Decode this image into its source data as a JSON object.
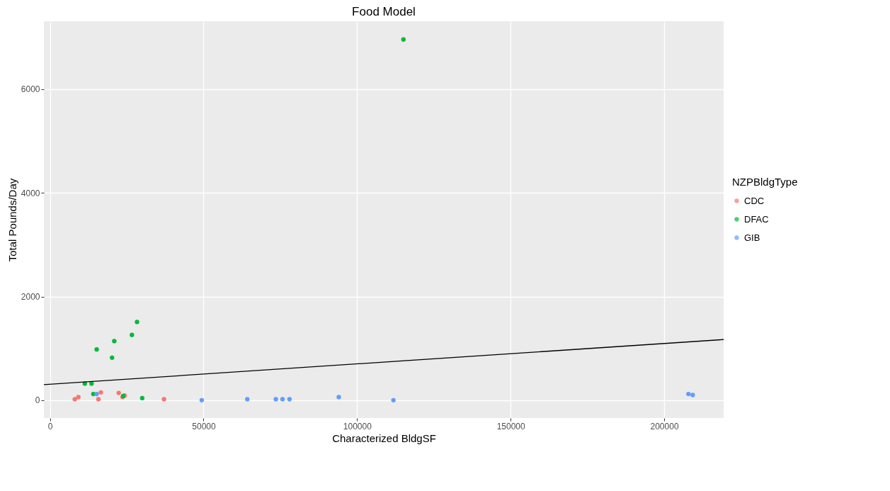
{
  "chart_data": {
    "type": "scatter",
    "title": "Food Model",
    "xlabel": "Characterized BldgSF",
    "ylabel": "Total Pounds/Day",
    "legend_title": "NZPBldgType",
    "xlim": [
      -1990,
      219360
    ],
    "xticks": [
      0,
      50000,
      100000,
      150000,
      200000
    ],
    "ylim": [
      -344,
      7312
    ],
    "yticks": [
      0,
      2000,
      4000,
      6000
    ],
    "grid": true,
    "legend": "right",
    "series": [
      {
        "name": "CDC",
        "color": "#f8766d",
        "marker": "circle",
        "x": [
          8070,
          9230,
          15770,
          16570,
          22380,
          23620,
          24280,
          37130
        ],
        "values": [
          20,
          60,
          20,
          150,
          140,
          60,
          90,
          20
        ]
      },
      {
        "name": "DFAC",
        "color": "#00ba38",
        "marker": "circle",
        "x": [
          28340,
          26670,
          20930,
          15200,
          20200,
          11330,
          13520,
          14100,
          23840,
          30020,
          115100
        ],
        "values": [
          1510,
          1260,
          1140,
          980,
          820,
          320,
          320,
          120,
          80,
          40,
          6960
        ]
      },
      {
        "name": "GIB",
        "color": "#619cff",
        "marker": "circle",
        "x": [
          15200,
          49420,
          64240,
          73540,
          75720,
          77980,
          94040,
          111840,
          207900,
          209300
        ],
        "values": [
          120,
          0,
          20,
          20,
          20,
          20,
          60,
          0,
          120,
          100
        ]
      },
      {
        "type": "line",
        "color": "#000000",
        "x": [
          -1990,
          219360
        ],
        "values": [
          300,
          1170
        ],
        "line_style": "solid"
      }
    ]
  }
}
